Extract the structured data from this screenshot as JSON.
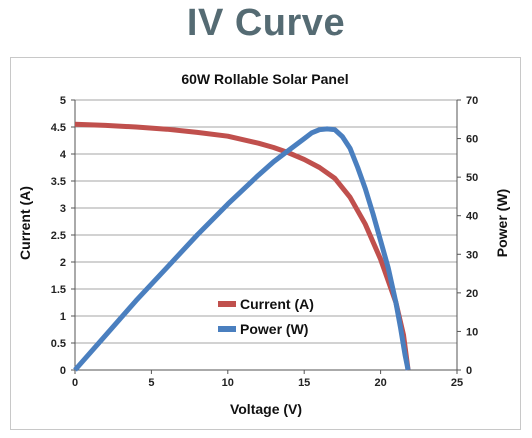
{
  "page_title": "IV Curve",
  "colors": {
    "title": "#556b73",
    "current": "#c0504d",
    "power": "#4a7fbf",
    "grid": "#a6a6a6"
  },
  "chart_data": {
    "type": "line",
    "title": "60W Rollable Solar Panel",
    "xlabel": "Voltage (V)",
    "ylabel": "Current (A)",
    "y2label": "Power (W)",
    "xlim": [
      0,
      25
    ],
    "ylim": [
      0,
      5
    ],
    "y2lim": [
      0,
      70
    ],
    "xticks": [
      "0",
      "5",
      "10",
      "15",
      "20",
      "25"
    ],
    "yticks": [
      "0",
      "0.5",
      "1",
      "1.5",
      "2",
      "2.5",
      "3",
      "3.5",
      "4",
      "4.5",
      "5"
    ],
    "y2ticks": [
      "0",
      "10",
      "20",
      "30",
      "40",
      "50",
      "60",
      "70"
    ],
    "grid": true,
    "legend_position": "bottom-center",
    "series": [
      {
        "name": "Current (A)",
        "axis": "left",
        "color": "#c0504d",
        "x": [
          0,
          2,
          4,
          6,
          8,
          10,
          12,
          13,
          14,
          15,
          16,
          17,
          18,
          19,
          20,
          21,
          21.5,
          21.8
        ],
        "y": [
          4.55,
          4.53,
          4.5,
          4.46,
          4.4,
          4.33,
          4.2,
          4.12,
          4.02,
          3.9,
          3.75,
          3.55,
          3.2,
          2.7,
          2.05,
          1.25,
          0.65,
          0
        ]
      },
      {
        "name": "Power (W)",
        "axis": "right",
        "color": "#4a7fbf",
        "x": [
          0,
          2,
          4,
          6,
          8,
          10,
          12,
          13,
          14,
          15,
          15.5,
          16,
          16.5,
          17,
          17.5,
          18,
          18.5,
          19,
          19.5,
          20,
          20.5,
          21,
          21.3,
          21.6,
          21.8
        ],
        "y": [
          0,
          9,
          18,
          26.5,
          35,
          43,
          50.5,
          54,
          57,
          60,
          61.5,
          62.3,
          62.5,
          62.3,
          60.5,
          57.5,
          52.5,
          47,
          40.5,
          33.5,
          26.5,
          17.5,
          11,
          4,
          0
        ]
      }
    ]
  }
}
